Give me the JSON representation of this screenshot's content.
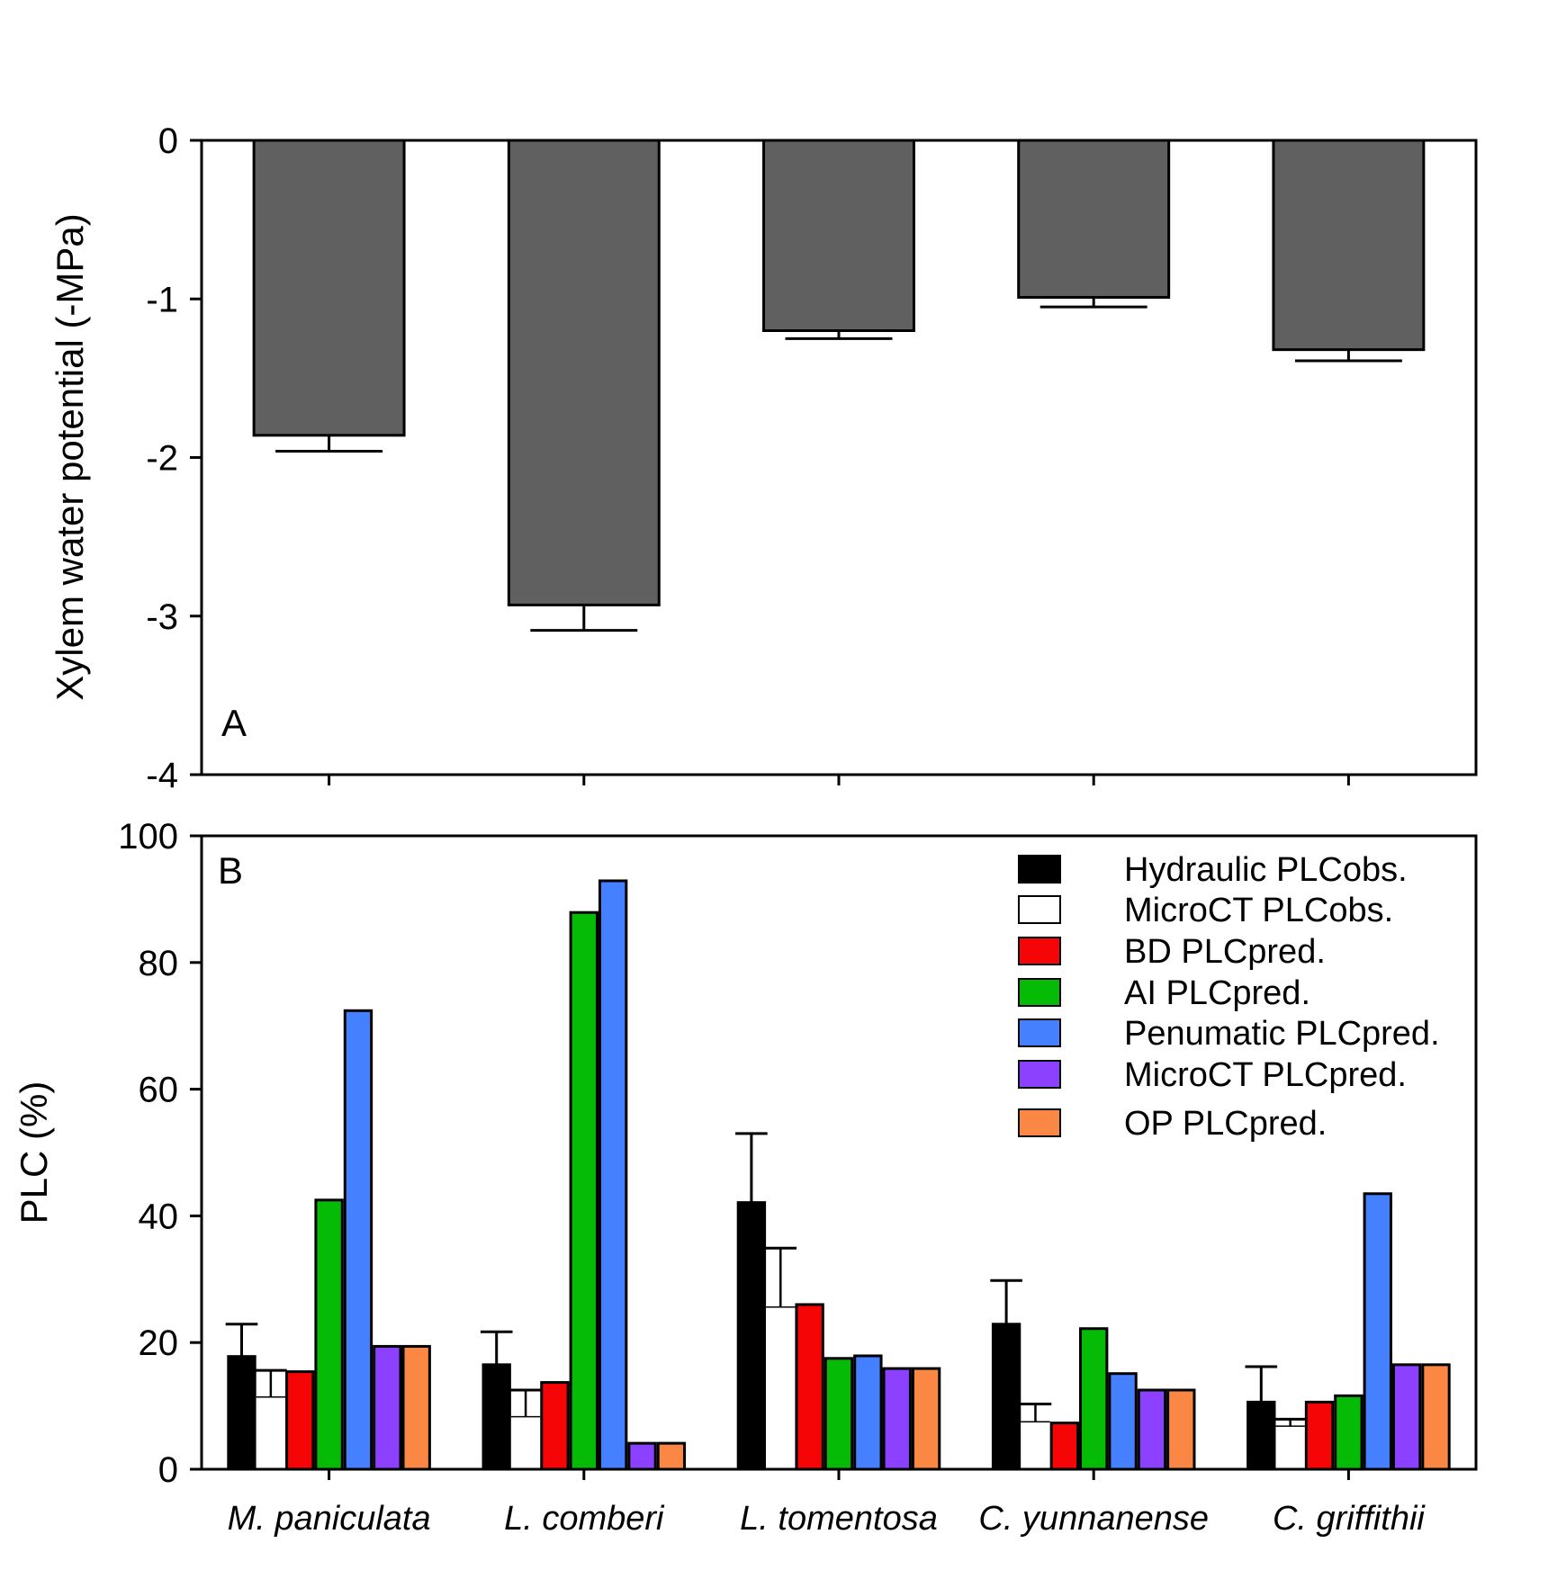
{
  "chart_data": [
    {
      "type": "bar",
      "panel_label": "A",
      "ylabel": "Xylem water potential (-MPa)",
      "xlabel": "",
      "ylim": [
        -4,
        0
      ],
      "yticks": [
        "0",
        "-1",
        "-2",
        "-3",
        "-4"
      ],
      "ytick_values": [
        0,
        -1,
        -2,
        -3,
        -4
      ],
      "grid": false,
      "categories": [
        "M. paniculata",
        "L. comberi",
        "L. tomentosa",
        "C. yunnanense",
        "C. griffithii"
      ],
      "series": [
        {
          "color": "#606060",
          "values": [
            -1.86,
            -2.93,
            -1.2,
            -0.99,
            -1.32
          ],
          "errors": [
            0.1,
            0.16,
            0.05,
            0.06,
            0.07
          ]
        }
      ]
    },
    {
      "type": "bar",
      "panel_label": "B",
      "ylabel": "PLC (%)",
      "xlabel": "",
      "ylim": [
        0,
        100
      ],
      "yticks": [
        "0",
        "20",
        "40",
        "60",
        "80",
        "100"
      ],
      "ytick_values": [
        0,
        20,
        40,
        60,
        80,
        100
      ],
      "grid": false,
      "legend_position": "top-right",
      "categories": [
        "M. paniculata",
        "L. comberi",
        "L. tomentosa",
        "C. yunnanense",
        "C. griffithii"
      ],
      "series": [
        {
          "name": "Hydraulic PLCobs.",
          "color": "#000000",
          "values": [
            17.8,
            16.5,
            42.1,
            22.9,
            10.6
          ],
          "errors": [
            5.1,
            5.2,
            10.9,
            6.9,
            5.6
          ]
        },
        {
          "name": "MicroCT PLCobs.",
          "color": "#ffffff",
          "values": [
            11.4,
            8.3,
            25.6,
            7.5,
            6.8
          ],
          "errors": [
            4.2,
            4.2,
            9.3,
            2.8,
            1.1
          ]
        },
        {
          "name": "BD PLCpred.",
          "color": "#f50505",
          "values": [
            15.4,
            13.7,
            26.0,
            7.3,
            10.6
          ]
        },
        {
          "name": "AI PLCpred.",
          "color": "#05bb05",
          "values": [
            42.5,
            87.9,
            17.5,
            22.2,
            11.6
          ]
        },
        {
          "name": "Penumatic PLCpred.",
          "color": "#4480ff",
          "values": [
            72.4,
            92.9,
            17.9,
            15.1,
            43.5
          ]
        },
        {
          "name": "MicroCT PLCpred.",
          "color": "#8b41ff",
          "values": [
            19.4,
            4.1,
            15.9,
            12.5,
            16.5
          ]
        },
        {
          "name": "OP PLCpred.",
          "color": "#fb8744",
          "values": [
            19.4,
            4.1,
            15.9,
            12.5,
            16.5
          ]
        }
      ]
    }
  ]
}
